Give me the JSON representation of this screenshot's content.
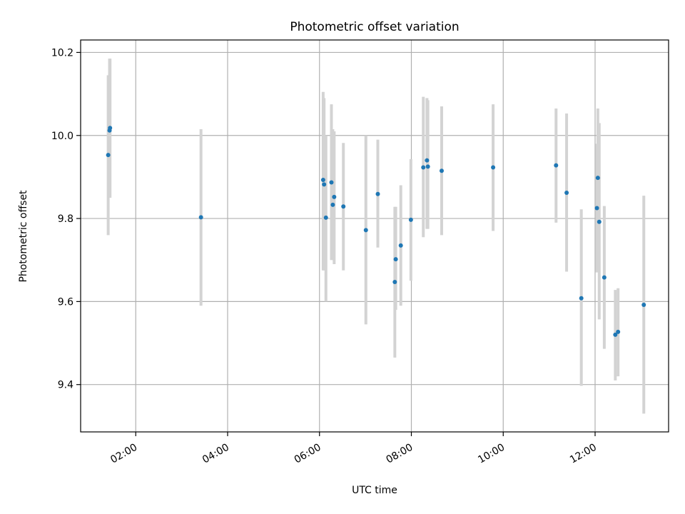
{
  "chart_data": {
    "type": "scatter",
    "title": "Photometric offset variation",
    "xlabel": "UTC time",
    "ylabel": "Photometric offset",
    "grid": true,
    "xlim_hours": [
      0.8,
      13.6
    ],
    "ylim": [
      9.286,
      10.23
    ],
    "x_ticks": [
      {
        "hour": 2,
        "label": "02:00"
      },
      {
        "hour": 4,
        "label": "04:00"
      },
      {
        "hour": 6,
        "label": "06:00"
      },
      {
        "hour": 8,
        "label": "08:00"
      },
      {
        "hour": 10,
        "label": "10:00"
      },
      {
        "hour": 12,
        "label": "12:00"
      }
    ],
    "y_ticks": [
      {
        "value": 9.4,
        "label": "9.4"
      },
      {
        "value": 9.6,
        "label": "9.6"
      },
      {
        "value": 9.8,
        "label": "9.8"
      },
      {
        "value": 10.0,
        "label": "10.0"
      },
      {
        "value": 10.2,
        "label": "10.2"
      }
    ],
    "colors": {
      "point": "#1f77b4",
      "errorbar": "#d3d3d3",
      "grid": "#b0b0b0",
      "axes": "#000000"
    },
    "points": [
      {
        "t": 1.4,
        "y": 9.953,
        "lo": 9.76,
        "hi": 10.145
      },
      {
        "t": 1.43,
        "y": 10.012,
        "lo": 9.85,
        "hi": 10.185
      },
      {
        "t": 1.44,
        "y": 10.018,
        "lo": 9.85,
        "hi": 10.185
      },
      {
        "t": 3.42,
        "y": 9.803,
        "lo": 9.59,
        "hi": 10.015
      },
      {
        "t": 6.08,
        "y": 9.893,
        "lo": 9.675,
        "hi": 10.105
      },
      {
        "t": 6.1,
        "y": 9.882,
        "lo": 9.675,
        "hi": 10.09
      },
      {
        "t": 6.14,
        "y": 9.802,
        "lo": 9.6,
        "hi": 10.0
      },
      {
        "t": 6.26,
        "y": 9.887,
        "lo": 9.7,
        "hi": 10.075
      },
      {
        "t": 6.29,
        "y": 9.833,
        "lo": 9.7,
        "hi": 10.015
      },
      {
        "t": 6.32,
        "y": 9.852,
        "lo": 9.69,
        "hi": 10.01
      },
      {
        "t": 6.52,
        "y": 9.829,
        "lo": 9.675,
        "hi": 9.982
      },
      {
        "t": 7.01,
        "y": 9.772,
        "lo": 9.545,
        "hi": 10.0
      },
      {
        "t": 7.27,
        "y": 9.859,
        "lo": 9.73,
        "hi": 9.99
      },
      {
        "t": 7.64,
        "y": 9.647,
        "lo": 9.465,
        "hi": 9.828
      },
      {
        "t": 7.66,
        "y": 9.702,
        "lo": 9.58,
        "hi": 9.828
      },
      {
        "t": 7.77,
        "y": 9.735,
        "lo": 9.59,
        "hi": 9.88
      },
      {
        "t": 7.99,
        "y": 9.797,
        "lo": 9.65,
        "hi": 9.943
      },
      {
        "t": 8.26,
        "y": 9.923,
        "lo": 9.755,
        "hi": 10.093
      },
      {
        "t": 8.34,
        "y": 9.94,
        "lo": 9.775,
        "hi": 10.09
      },
      {
        "t": 8.36,
        "y": 9.925,
        "lo": 9.775,
        "hi": 10.085
      },
      {
        "t": 8.66,
        "y": 9.915,
        "lo": 9.76,
        "hi": 10.07
      },
      {
        "t": 9.78,
        "y": 9.923,
        "lo": 9.77,
        "hi": 10.075
      },
      {
        "t": 11.15,
        "y": 9.928,
        "lo": 9.79,
        "hi": 10.065
      },
      {
        "t": 11.38,
        "y": 9.862,
        "lo": 9.672,
        "hi": 10.053
      },
      {
        "t": 11.7,
        "y": 9.608,
        "lo": 9.397,
        "hi": 9.822
      },
      {
        "t": 12.04,
        "y": 9.825,
        "lo": 9.67,
        "hi": 9.98
      },
      {
        "t": 12.06,
        "y": 9.898,
        "lo": 9.73,
        "hi": 10.065
      },
      {
        "t": 12.09,
        "y": 9.792,
        "lo": 9.557,
        "hi": 10.03
      },
      {
        "t": 12.2,
        "y": 9.658,
        "lo": 9.486,
        "hi": 9.83
      },
      {
        "t": 12.44,
        "y": 9.52,
        "lo": 9.41,
        "hi": 9.628
      },
      {
        "t": 12.5,
        "y": 9.527,
        "lo": 9.42,
        "hi": 9.632
      },
      {
        "t": 13.06,
        "y": 9.592,
        "lo": 9.33,
        "hi": 9.855
      }
    ]
  }
}
